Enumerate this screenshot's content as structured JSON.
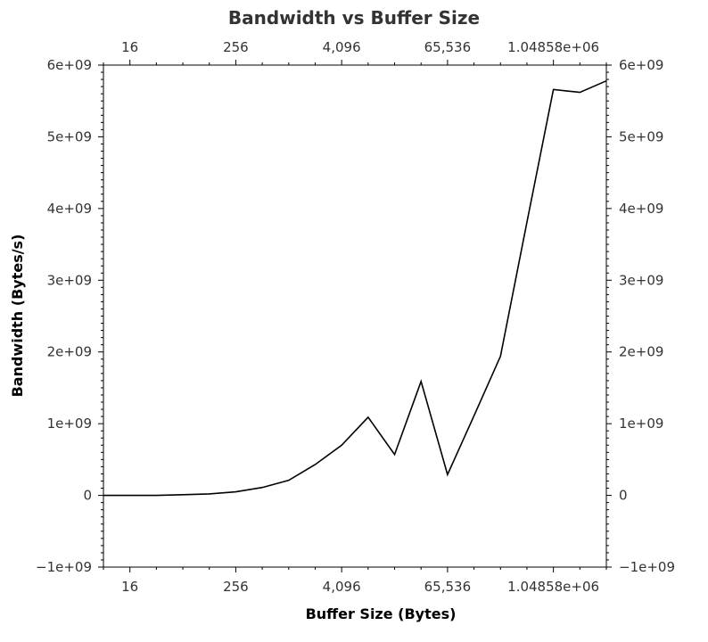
{
  "chart_data": {
    "type": "line",
    "title": "Bandwidth vs Buffer Size",
    "xlabel": "Buffer Size (Bytes)",
    "ylabel": "Bandwidth (Bytes/s)",
    "x_scale": "log2",
    "xlim": [
      8,
      4194304
    ],
    "ylim": [
      -1000000000,
      6000000000
    ],
    "x_ticks": [
      {
        "value": 16,
        "label": "16"
      },
      {
        "value": 256,
        "label": "256"
      },
      {
        "value": 4096,
        "label": "4,096"
      },
      {
        "value": 65536,
        "label": "65,536"
      },
      {
        "value": 1048576,
        "label": "1.04858e+06"
      }
    ],
    "y_ticks": [
      {
        "value": -1000000000,
        "label": "−1e+09"
      },
      {
        "value": 0,
        "label": "0"
      },
      {
        "value": 1000000000,
        "label": "1e+09"
      },
      {
        "value": 2000000000,
        "label": "2e+09"
      },
      {
        "value": 3000000000,
        "label": "3e+09"
      },
      {
        "value": 4000000000,
        "label": "4e+09"
      },
      {
        "value": 5000000000,
        "label": "5e+09"
      },
      {
        "value": 6000000000,
        "label": "6e+09"
      }
    ],
    "grid": false,
    "line_color": "#000000",
    "series": [
      {
        "x": [
          8,
          16,
          32,
          64,
          128,
          256,
          512,
          1024,
          2048,
          4096,
          8192,
          16384,
          32768,
          65536,
          131072,
          262144,
          524288,
          1048576,
          2097152,
          4194304
        ],
        "values": [
          0,
          0,
          0,
          10000000,
          20000000,
          50000000,
          110000000,
          210000000,
          430000000,
          700000000,
          1090000000,
          570000000,
          1590000000,
          290000000,
          1110000000,
          1940000000,
          3810000000,
          5660000000,
          5620000000,
          5780000000
        ]
      }
    ]
  }
}
